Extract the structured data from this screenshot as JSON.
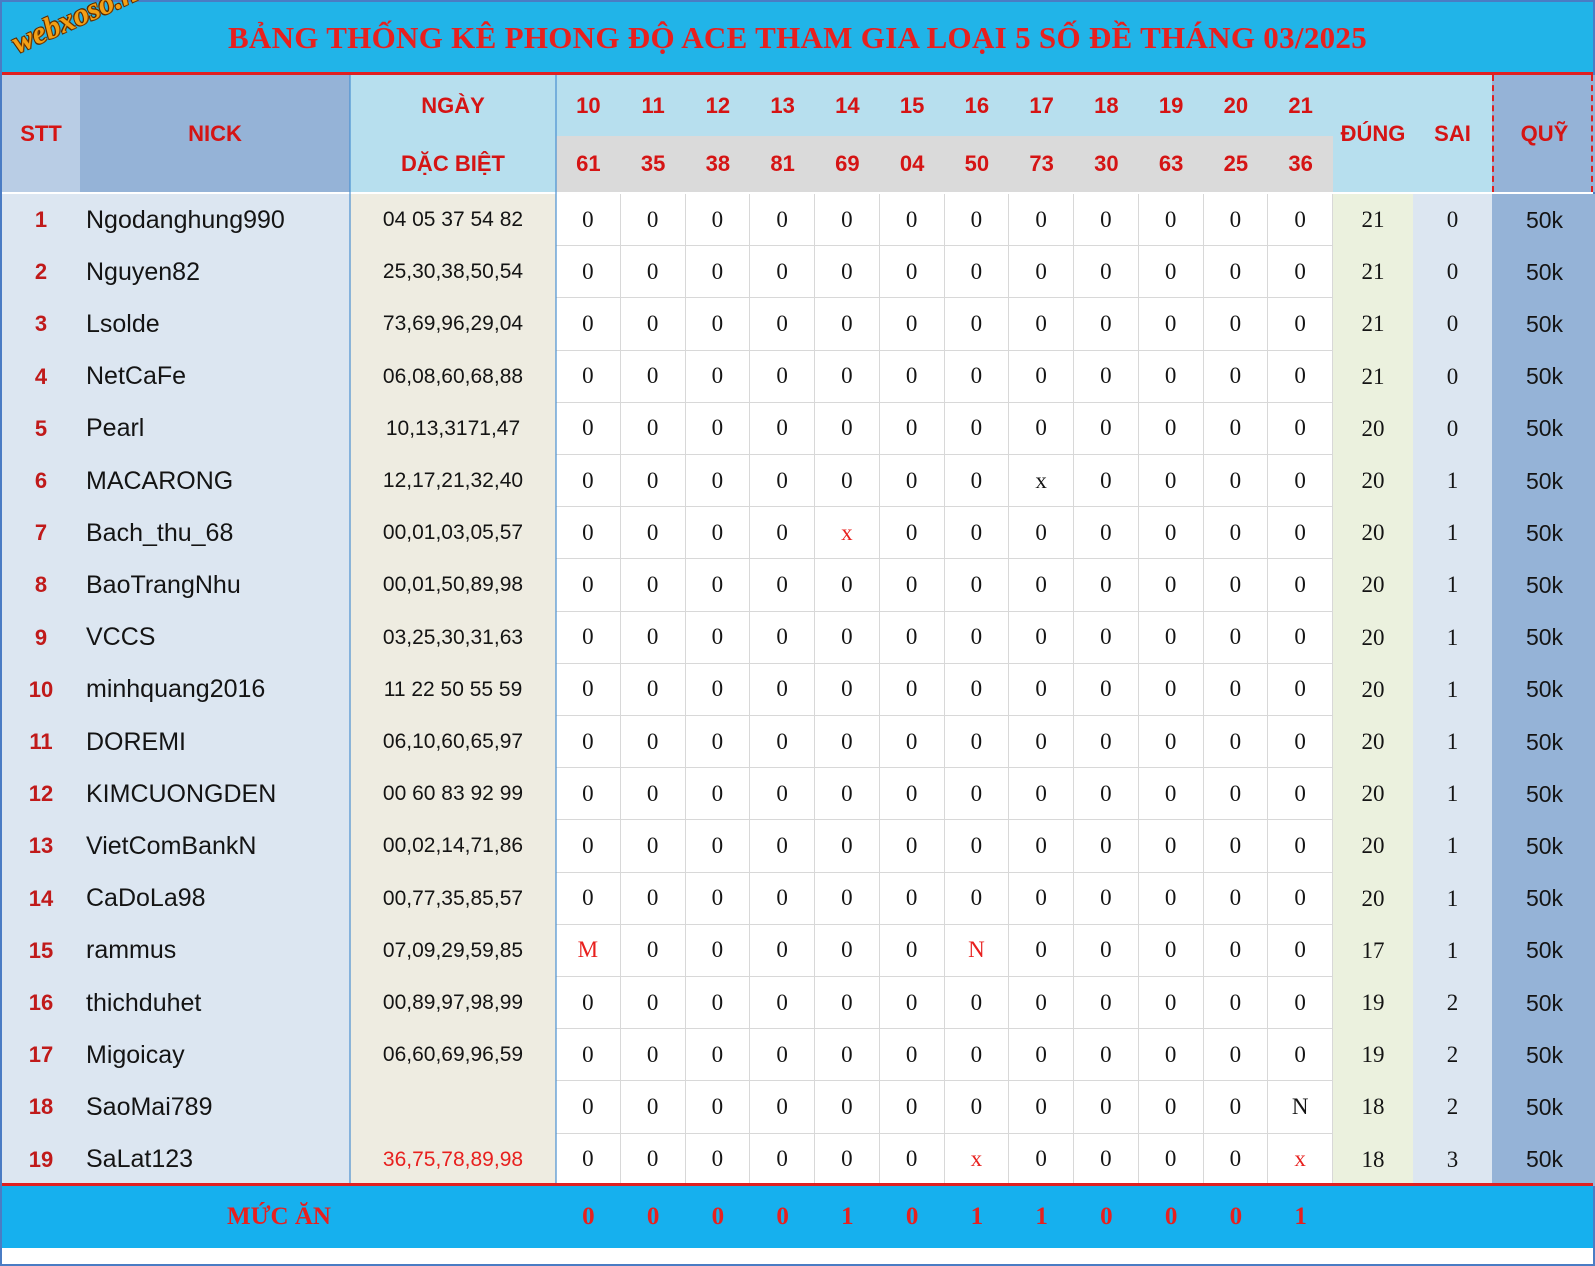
{
  "logo": "webxoso.net",
  "title": "BẢNG THỐNG KÊ PHONG ĐỘ ACE THAM GIA LOẠI 5 SỐ ĐỀ THÁNG 03/2025",
  "headers": {
    "stt": "STT",
    "nick": "NICK",
    "ngay": "NGÀY",
    "dac_biet": "DẶC BIỆT",
    "dung": "ĐÚNG",
    "sai": "SAI",
    "quy": "QUỸ"
  },
  "days": [
    "10",
    "11",
    "12",
    "13",
    "14",
    "15",
    "16",
    "17",
    "18",
    "19",
    "20",
    "21"
  ],
  "special_results": [
    "61",
    "35",
    "38",
    "81",
    "69",
    "04",
    "50",
    "73",
    "30",
    "63",
    "25",
    "36"
  ],
  "rows": [
    {
      "stt": "1",
      "nick": "Ngodanghung990",
      "numbers": "04 05 37 54 82",
      "marks": [
        "0",
        "0",
        "0",
        "0",
        "0",
        "0",
        "0",
        "0",
        "0",
        "0",
        "0",
        "0"
      ],
      "dung": "21",
      "sai": "0",
      "quy": "50k"
    },
    {
      "stt": "2",
      "nick": "Nguyen82",
      "numbers": "25,30,38,50,54",
      "marks": [
        "0",
        "0",
        "0",
        "0",
        "0",
        "0",
        "0",
        "0",
        "0",
        "0",
        "0",
        "0"
      ],
      "dung": "21",
      "sai": "0",
      "quy": "50k"
    },
    {
      "stt": "3",
      "nick": "Lsolde",
      "numbers": "73,69,96,29,04",
      "marks": [
        "0",
        "0",
        "0",
        "0",
        "0",
        "0",
        "0",
        "0",
        "0",
        "0",
        "0",
        "0"
      ],
      "dung": "21",
      "sai": "0",
      "quy": "50k"
    },
    {
      "stt": "4",
      "nick": "NetCaFe",
      "numbers": "06,08,60,68,88",
      "marks": [
        "0",
        "0",
        "0",
        "0",
        "0",
        "0",
        "0",
        "0",
        "0",
        "0",
        "0",
        "0"
      ],
      "dung": "21",
      "sai": "0",
      "quy": "50k"
    },
    {
      "stt": "5",
      "nick": "Pearl",
      "numbers": "10,13,3171,47",
      "marks": [
        "0",
        "0",
        "0",
        "0",
        "0",
        "0",
        "0",
        "0",
        "0",
        "0",
        "0",
        "0"
      ],
      "dung": "20",
      "sai": "0",
      "quy": "50k"
    },
    {
      "stt": "6",
      "nick": "MACARONG",
      "numbers": "12,17,21,32,40",
      "marks": [
        "0",
        "0",
        "0",
        "0",
        "0",
        "0",
        "0",
        "x",
        "0",
        "0",
        "0",
        "0"
      ],
      "dung": "20",
      "sai": "1",
      "quy": "50k"
    },
    {
      "stt": "7",
      "nick": "Bach_thu_68",
      "numbers": "00,01,03,05,57",
      "marks": [
        "0",
        "0",
        "0",
        "0",
        "x",
        "0",
        "0",
        "0",
        "0",
        "0",
        "0",
        "0"
      ],
      "dung": "20",
      "sai": "1",
      "quy": "50k"
    },
    {
      "stt": "8",
      "nick": "BaoTrangNhu",
      "numbers": "00,01,50,89,98",
      "marks": [
        "0",
        "0",
        "0",
        "0",
        "0",
        "0",
        "0",
        "0",
        "0",
        "0",
        "0",
        "0"
      ],
      "dung": "20",
      "sai": "1",
      "quy": "50k"
    },
    {
      "stt": "9",
      "nick": "VCCS",
      "numbers": "03,25,30,31,63",
      "marks": [
        "0",
        "0",
        "0",
        "0",
        "0",
        "0",
        "0",
        "0",
        "0",
        "0",
        "0",
        "0"
      ],
      "dung": "20",
      "sai": "1",
      "quy": "50k"
    },
    {
      "stt": "10",
      "nick": "minhquang2016",
      "numbers": "11 22 50 55 59",
      "marks": [
        "0",
        "0",
        "0",
        "0",
        "0",
        "0",
        "0",
        "0",
        "0",
        "0",
        "0",
        "0"
      ],
      "dung": "20",
      "sai": "1",
      "quy": "50k"
    },
    {
      "stt": "11",
      "nick": "DOREMI",
      "numbers": "06,10,60,65,97",
      "marks": [
        "0",
        "0",
        "0",
        "0",
        "0",
        "0",
        "0",
        "0",
        "0",
        "0",
        "0",
        "0"
      ],
      "dung": "20",
      "sai": "1",
      "quy": "50k"
    },
    {
      "stt": "12",
      "nick": "KIMCUONGDEN",
      "numbers": "00 60 83 92 99",
      "marks": [
        "0",
        "0",
        "0",
        "0",
        "0",
        "0",
        "0",
        "0",
        "0",
        "0",
        "0",
        "0"
      ],
      "dung": "20",
      "sai": "1",
      "quy": "50k"
    },
    {
      "stt": "13",
      "nick": "VietComBankN",
      "numbers": "00,02,14,71,86",
      "marks": [
        "0",
        "0",
        "0",
        "0",
        "0",
        "0",
        "0",
        "0",
        "0",
        "0",
        "0",
        "0"
      ],
      "dung": "20",
      "sai": "1",
      "quy": "50k"
    },
    {
      "stt": "14",
      "nick": "CaDoLa98",
      "numbers": "00,77,35,85,57",
      "marks": [
        "0",
        "0",
        "0",
        "0",
        "0",
        "0",
        "0",
        "0",
        "0",
        "0",
        "0",
        "0"
      ],
      "dung": "20",
      "sai": "1",
      "quy": "50k"
    },
    {
      "stt": "15",
      "nick": "rammus",
      "numbers": "07,09,29,59,85",
      "marks": [
        "M",
        "0",
        "0",
        "0",
        "0",
        "0",
        "N",
        "0",
        "0",
        "0",
        "0",
        "0"
      ],
      "dung": "17",
      "sai": "1",
      "quy": "50k"
    },
    {
      "stt": "16",
      "nick": "thichduhet",
      "numbers": "00,89,97,98,99",
      "marks": [
        "0",
        "0",
        "0",
        "0",
        "0",
        "0",
        "0",
        "0",
        "0",
        "0",
        "0",
        "0"
      ],
      "dung": "19",
      "sai": "2",
      "quy": "50k"
    },
    {
      "stt": "17",
      "nick": "Migoicay",
      "numbers": "06,60,69,96,59",
      "marks": [
        "0",
        "0",
        "0",
        "0",
        "0",
        "0",
        "0",
        "0",
        "0",
        "0",
        "0",
        "0"
      ],
      "dung": "19",
      "sai": "2",
      "quy": "50k"
    },
    {
      "stt": "18",
      "nick": "SaoMai789",
      "numbers": "",
      "marks": [
        "0",
        "0",
        "0",
        "0",
        "0",
        "0",
        "0",
        "0",
        "0",
        "0",
        "0",
        "N"
      ],
      "dung": "18",
      "sai": "2",
      "quy": "50k"
    },
    {
      "stt": "19",
      "nick": "SaLat123",
      "numbers": "36,75,78,89,98",
      "marks": [
        "0",
        "0",
        "0",
        "0",
        "0",
        "0",
        "x",
        "0",
        "0",
        "0",
        "0",
        "x"
      ],
      "dung": "18",
      "sai": "3",
      "quy": "50k"
    }
  ],
  "red_numbers_rows": [
    19
  ],
  "red_marks": [
    [
      "7",
      "4"
    ],
    [
      "15",
      "0"
    ],
    [
      "15",
      "6"
    ],
    [
      "19",
      "6"
    ],
    [
      "19",
      "11"
    ]
  ],
  "footer": {
    "label": "MỨC ĂN",
    "values": [
      "0",
      "0",
      "0",
      "0",
      "1",
      "0",
      "1",
      "1",
      "0",
      "0",
      "0",
      "1"
    ]
  },
  "colors": {
    "title_bg": "#21b4e8",
    "header_text": "#d51414",
    "footer_bg": "#16b0ee",
    "border_red": "#e02020"
  }
}
